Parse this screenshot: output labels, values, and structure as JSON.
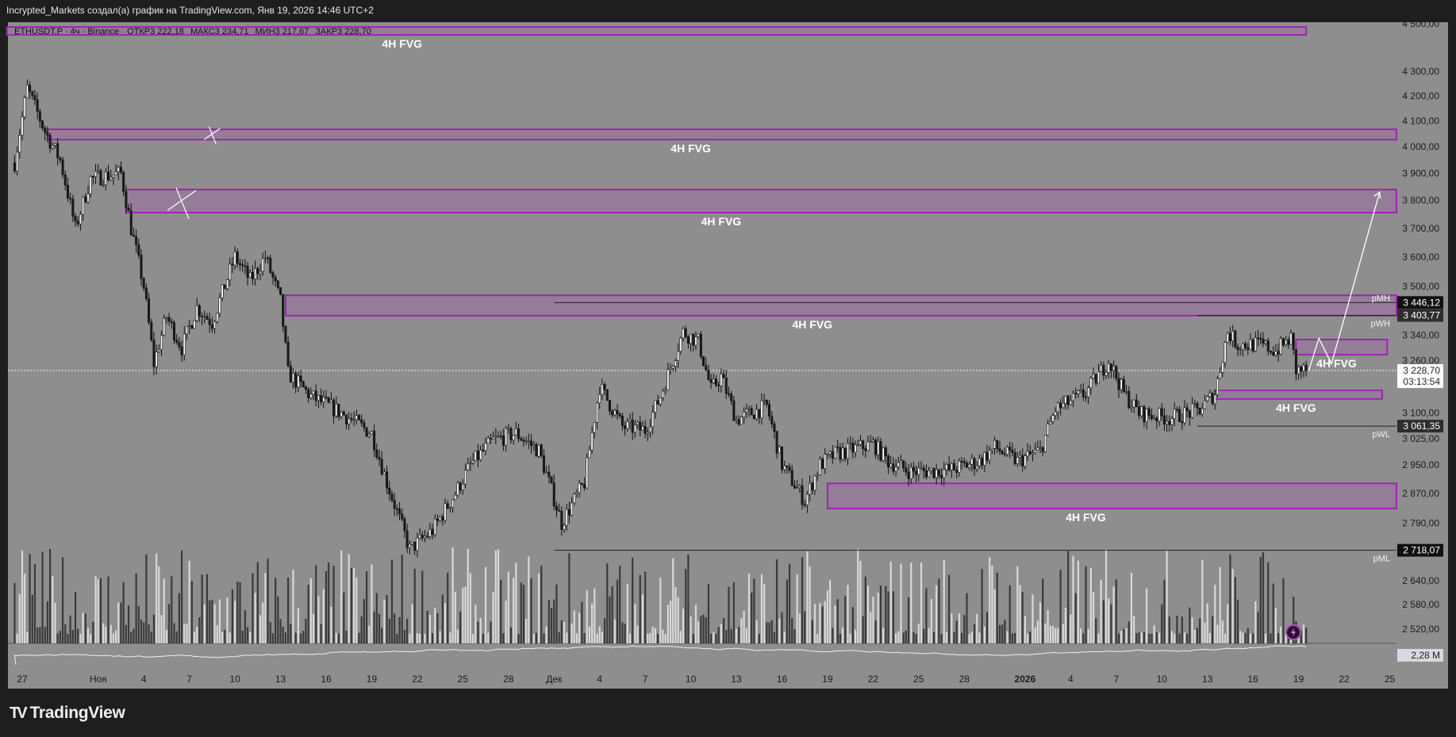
{
  "header": {
    "attribution": "Incrypted_Markets создал(а) график на TradingView.com, Янв 19, 2026 14:46 UTC+2"
  },
  "legend": {
    "symbol": "ETHUSDT.P · 4ч · Binance",
    "open_label": "ОТКР",
    "open": "3 222,18",
    "high_label": "МАКС",
    "high": "3 234,71",
    "low_label": "МИН",
    "low": "3 217,67",
    "close_label": "ЗАКР",
    "close": "3 228,70"
  },
  "branding": {
    "logo_text": "TradingView"
  },
  "colors": {
    "background": "#1e1e1e",
    "chart_bg": "#8e8e8e",
    "fvg_border": "#9c27b0",
    "fvg_fill": "#957c99",
    "up_candle": "#ffffff",
    "down_candle": "#1a1a1a",
    "annotation": "#ffffff"
  },
  "chart_data": {
    "type": "candlestick",
    "symbol": "ETHUSDT.P",
    "timeframe": "4ч",
    "y_scale": "log",
    "ylim": [
      2480,
      4520
    ],
    "y_ticks": [
      {
        "value": 4500,
        "label": "4 500,00"
      },
      {
        "value": 4300,
        "label": "4 300,00"
      },
      {
        "value": 4200,
        "label": "4 200,00"
      },
      {
        "value": 4100,
        "label": "4 100,00"
      },
      {
        "value": 4000,
        "label": "4 000,00"
      },
      {
        "value": 3900,
        "label": "3 900,00"
      },
      {
        "value": 3800,
        "label": "3 800,00"
      },
      {
        "value": 3700,
        "label": "3 700,00"
      },
      {
        "value": 3600,
        "label": "3 600,00"
      },
      {
        "value": 3500,
        "label": "3 500,00"
      },
      {
        "value": 3340,
        "label": "3 340,00"
      },
      {
        "value": 3260,
        "label": "3 260,00"
      },
      {
        "value": 3100,
        "label": "3 100,00"
      },
      {
        "value": 3025,
        "label": "3 025,00"
      },
      {
        "value": 2950,
        "label": "2 950,00"
      },
      {
        "value": 2870,
        "label": "2 870,00"
      },
      {
        "value": 2790,
        "label": "2 790,00"
      },
      {
        "value": 2640,
        "label": "2 640,00"
      },
      {
        "value": 2580,
        "label": "2 580,00"
      },
      {
        "value": 2520,
        "label": "2 520,00"
      }
    ],
    "x_ticks": [
      {
        "date": "2025-10-27",
        "label": "27"
      },
      {
        "date": "2025-11-01",
        "label": "Ноя",
        "bold": false
      },
      {
        "date": "2025-11-04",
        "label": "4"
      },
      {
        "date": "2025-11-07",
        "label": "7"
      },
      {
        "date": "2025-11-10",
        "label": "10"
      },
      {
        "date": "2025-11-13",
        "label": "13"
      },
      {
        "date": "2025-11-16",
        "label": "16"
      },
      {
        "date": "2025-11-19",
        "label": "19"
      },
      {
        "date": "2025-11-22",
        "label": "22"
      },
      {
        "date": "2025-11-25",
        "label": "25"
      },
      {
        "date": "2025-11-28",
        "label": "28"
      },
      {
        "date": "2025-12-01",
        "label": "Дек"
      },
      {
        "date": "2025-12-04",
        "label": "4"
      },
      {
        "date": "2025-12-07",
        "label": "7"
      },
      {
        "date": "2025-12-10",
        "label": "10"
      },
      {
        "date": "2025-12-13",
        "label": "13"
      },
      {
        "date": "2025-12-16",
        "label": "16"
      },
      {
        "date": "2025-12-19",
        "label": "19"
      },
      {
        "date": "2025-12-22",
        "label": "22"
      },
      {
        "date": "2025-12-25",
        "label": "25"
      },
      {
        "date": "2025-12-28",
        "label": "28"
      },
      {
        "date": "2026-01-01",
        "label": "2026",
        "bold": true
      },
      {
        "date": "2026-01-04",
        "label": "4"
      },
      {
        "date": "2026-01-07",
        "label": "7"
      },
      {
        "date": "2026-01-10",
        "label": "10"
      },
      {
        "date": "2026-01-13",
        "label": "13"
      },
      {
        "date": "2026-01-16",
        "label": "16"
      },
      {
        "date": "2026-01-19",
        "label": "19"
      },
      {
        "date": "2026-01-22",
        "label": "22"
      },
      {
        "date": "2026-01-25",
        "label": "25"
      }
    ],
    "price_path": [
      [
        "2025-10-26 12:00",
        3940
      ],
      [
        "2025-10-27 08:00",
        4230
      ],
      [
        "2025-10-28 12:00",
        4060
      ],
      [
        "2025-10-29 12:00",
        3950
      ],
      [
        "2025-10-30 12:00",
        3700
      ],
      [
        "2025-10-31 12:00",
        3880
      ],
      [
        "2025-11-02 12:00",
        3900
      ],
      [
        "2025-11-03 04:00",
        3700
      ],
      [
        "2025-11-04 00:00",
        3500
      ],
      [
        "2025-11-04 16:00",
        3250
      ],
      [
        "2025-11-05 12:00",
        3400
      ],
      [
        "2025-11-06 12:00",
        3300
      ],
      [
        "2025-11-07 12:00",
        3430
      ],
      [
        "2025-11-08 12:00",
        3380
      ],
      [
        "2025-11-10 00:00",
        3600
      ],
      [
        "2025-11-11 00:00",
        3520
      ],
      [
        "2025-11-12 00:00",
        3600
      ],
      [
        "2025-11-13 00:00",
        3450
      ],
      [
        "2025-11-13 12:00",
        3220
      ],
      [
        "2025-11-15 00:00",
        3150
      ],
      [
        "2025-11-17 00:00",
        3100
      ],
      [
        "2025-11-19 00:00",
        3040
      ],
      [
        "2025-11-20 00:00",
        2900
      ],
      [
        "2025-11-21 12:00",
        2720
      ],
      [
        "2025-11-23 00:00",
        2770
      ],
      [
        "2025-11-24 12:00",
        2870
      ],
      [
        "2025-11-25 12:00",
        2950
      ],
      [
        "2025-11-27 00:00",
        3020
      ],
      [
        "2025-11-28 12:00",
        3040
      ],
      [
        "2025-11-30 00:00",
        2990
      ],
      [
        "2025-12-01 12:00",
        2790
      ],
      [
        "2025-12-03 00:00",
        2900
      ],
      [
        "2025-12-04 00:00",
        3180
      ],
      [
        "2025-12-05 12:00",
        3060
      ],
      [
        "2025-12-07 00:00",
        3050
      ],
      [
        "2025-12-08 00:00",
        3150
      ],
      [
        "2025-12-09 12:00",
        3350
      ],
      [
        "2025-12-10 12:00",
        3320
      ],
      [
        "2025-12-11 08:00",
        3170
      ],
      [
        "2025-12-12 00:00",
        3210
      ],
      [
        "2025-12-13 00:00",
        3080
      ],
      [
        "2025-12-15 00:00",
        3120
      ],
      [
        "2025-12-16 00:00",
        2950
      ],
      [
        "2025-12-17 12:00",
        2850
      ],
      [
        "2025-12-18 12:00",
        2950
      ],
      [
        "2025-12-19 12:00",
        2980
      ],
      [
        "2025-12-22 00:00",
        3010
      ],
      [
        "2025-12-23 00:00",
        2960
      ],
      [
        "2025-12-24 12:00",
        2930
      ],
      [
        "2025-12-27 00:00",
        2935
      ],
      [
        "2025-12-29 00:00",
        2960
      ],
      [
        "2025-12-30 00:00",
        3000
      ],
      [
        "2025-12-31 12:00",
        2960
      ],
      [
        "2026-01-02 00:00",
        2990
      ],
      [
        "2026-01-03 00:00",
        3110
      ],
      [
        "2026-01-05 00:00",
        3160
      ],
      [
        "2026-01-06 12:00",
        3260
      ],
      [
        "2026-01-07 12:00",
        3160
      ],
      [
        "2026-01-08 12:00",
        3100
      ],
      [
        "2026-01-10 12:00",
        3085
      ],
      [
        "2026-01-12 12:00",
        3110
      ],
      [
        "2026-01-13 12:00",
        3160
      ],
      [
        "2026-01-14 08:00",
        3350
      ],
      [
        "2026-01-15 00:00",
        3310
      ],
      [
        "2026-01-16 12:00",
        3310
      ],
      [
        "2026-01-17 12:00",
        3290
      ],
      [
        "2026-01-18 12:00",
        3330
      ],
      [
        "2026-01-18 20:00",
        3230
      ],
      [
        "2026-01-19 12:00",
        3228.7
      ]
    ],
    "fvg_zones": [
      {
        "label": "4H FVG",
        "top": 4487,
        "bottom": 4453,
        "start": "2025-10-26 00:00",
        "end": "2026-01-19 12:00",
        "label_date": "2025-11-21",
        "label_side": "below"
      },
      {
        "label": "4H FVG",
        "top": 4068,
        "bottom": 4028,
        "start": "2025-10-28 16:00",
        "end": "open",
        "label_date": "2025-12-10",
        "label_side": "below"
      },
      {
        "label": "4H FVG",
        "top": 3840,
        "bottom": 3756,
        "start": "2025-11-02 20:00",
        "end": "open",
        "label_date": "2025-12-12",
        "label_side": "below"
      },
      {
        "label": "4H FVG",
        "top": 3470,
        "bottom": 3403,
        "start": "2025-11-13 08:00",
        "end": "open",
        "label_date": "2025-12-18",
        "label_side": "below"
      },
      {
        "label": "4H FVG",
        "top": 3326,
        "bottom": 3278,
        "start": "2026-01-18 20:00",
        "end": "2026-01-24 20:00",
        "label_date": "2026-01-21 12:00",
        "label_side": "below"
      },
      {
        "label": "4H FVG",
        "top": 3168,
        "bottom": 3142,
        "start": "2026-01-13 12:00",
        "end": "2026-01-24 12:00",
        "label_date": "2026-01-18 20:00",
        "label_side": "below"
      },
      {
        "label": "4H FVG",
        "top": 2898,
        "bottom": 2829,
        "start": "2025-12-19 00:00",
        "end": "open",
        "label_date": "2026-01-05",
        "label_side": "below"
      }
    ],
    "levels": [
      {
        "name": "pMH",
        "value": 3446.12,
        "label": "3 446,12",
        "start": "2025-12-01 00:00",
        "tag_style": "dark"
      },
      {
        "name": "pWH",
        "value": 3403.77,
        "label": "3 403,77",
        "start": "2026-01-12 08:00",
        "tag_style": "gray"
      },
      {
        "name": "pWL",
        "value": 3061.35,
        "label": "3 061,35",
        "start": "2026-01-12 08:00",
        "tag_style": "gray"
      },
      {
        "name": "pML",
        "value": 2718.07,
        "label": "2 718,07",
        "start": "2025-12-01 00:00",
        "tag_style": "dark"
      }
    ],
    "last_price": {
      "value": 3228.7,
      "label": "3 228,70",
      "countdown": "03:13:54"
    },
    "projection_path": [
      [
        "2026-01-19 16:00",
        3228
      ],
      [
        "2026-01-20 08:00",
        3330
      ],
      [
        "2026-01-21 04:00",
        3250
      ],
      [
        "2026-01-24 08:00",
        3830
      ]
    ],
    "cross_marks": [
      [
        "2025-11-08 12:00",
        4050
      ],
      [
        "2025-11-06 12:00",
        3800
      ]
    ],
    "lower_pane": {
      "value_label": "2,28 M"
    }
  }
}
